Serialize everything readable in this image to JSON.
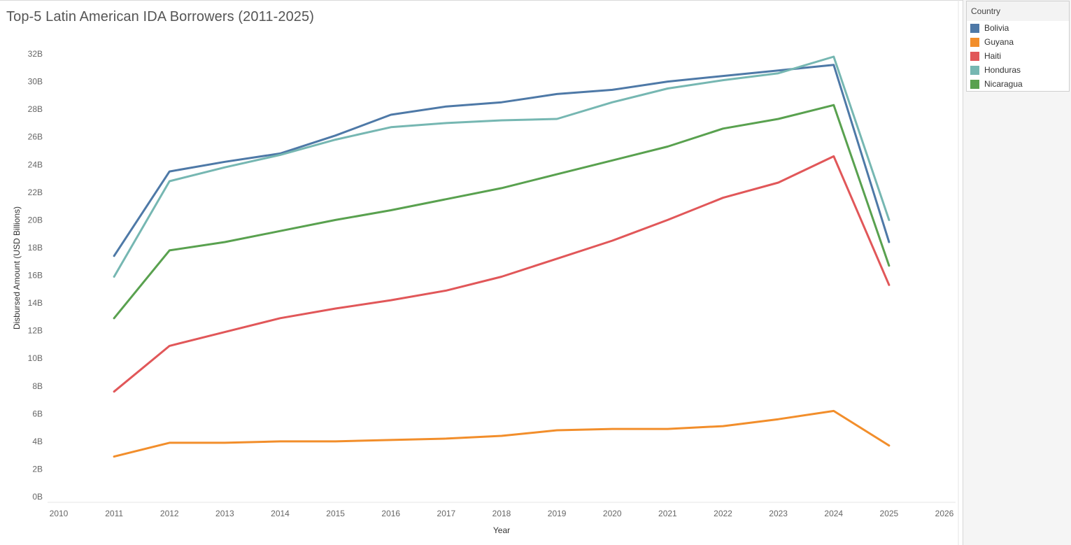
{
  "chart_data": {
    "type": "line",
    "title": "Top-5 Latin American IDA Borrowers (2011-2025)",
    "xlabel": "Year",
    "ylabel": "Disbursed Amount (USD Billions)",
    "xlim": [
      2010,
      2026
    ],
    "ylim": [
      0,
      32
    ],
    "x_ticks": [
      2010,
      2011,
      2012,
      2013,
      2014,
      2015,
      2016,
      2017,
      2018,
      2019,
      2020,
      2021,
      2022,
      2023,
      2024,
      2025,
      2026
    ],
    "y_ticks": [
      0,
      2,
      4,
      6,
      8,
      10,
      12,
      14,
      16,
      18,
      20,
      22,
      24,
      26,
      28,
      30,
      32
    ],
    "y_tick_suffix": "B",
    "grid": false,
    "legend": {
      "title": "Country",
      "position": "right"
    },
    "x": [
      2011,
      2012,
      2013,
      2014,
      2015,
      2016,
      2017,
      2018,
      2019,
      2020,
      2021,
      2022,
      2023,
      2024,
      2025
    ],
    "series": [
      {
        "name": "Bolivia",
        "color": "#4e79a7",
        "values": [
          17.4,
          23.5,
          24.2,
          24.8,
          26.1,
          27.6,
          28.2,
          28.5,
          29.1,
          29.4,
          30.0,
          30.4,
          30.8,
          31.2,
          18.4
        ]
      },
      {
        "name": "Guyana",
        "color": "#f28e2b",
        "values": [
          2.9,
          3.9,
          3.9,
          4.0,
          4.0,
          4.1,
          4.2,
          4.4,
          4.8,
          4.9,
          4.9,
          5.1,
          5.6,
          6.2,
          3.7
        ]
      },
      {
        "name": "Haiti",
        "color": "#e15759",
        "values": [
          7.6,
          10.9,
          11.9,
          12.9,
          13.6,
          14.2,
          14.9,
          15.9,
          17.2,
          18.5,
          20.0,
          21.6,
          22.7,
          24.6,
          15.3
        ]
      },
      {
        "name": "Honduras",
        "color": "#76b7b2",
        "values": [
          15.9,
          22.8,
          23.8,
          24.7,
          25.8,
          26.7,
          27.0,
          27.2,
          27.3,
          28.5,
          29.5,
          30.1,
          30.6,
          31.8,
          20.0
        ]
      },
      {
        "name": "Nicaragua",
        "color": "#59a14f",
        "values": [
          12.9,
          17.8,
          18.4,
          19.2,
          20.0,
          20.7,
          21.5,
          22.3,
          23.3,
          24.3,
          25.3,
          26.6,
          27.3,
          28.3,
          16.7
        ]
      }
    ]
  }
}
